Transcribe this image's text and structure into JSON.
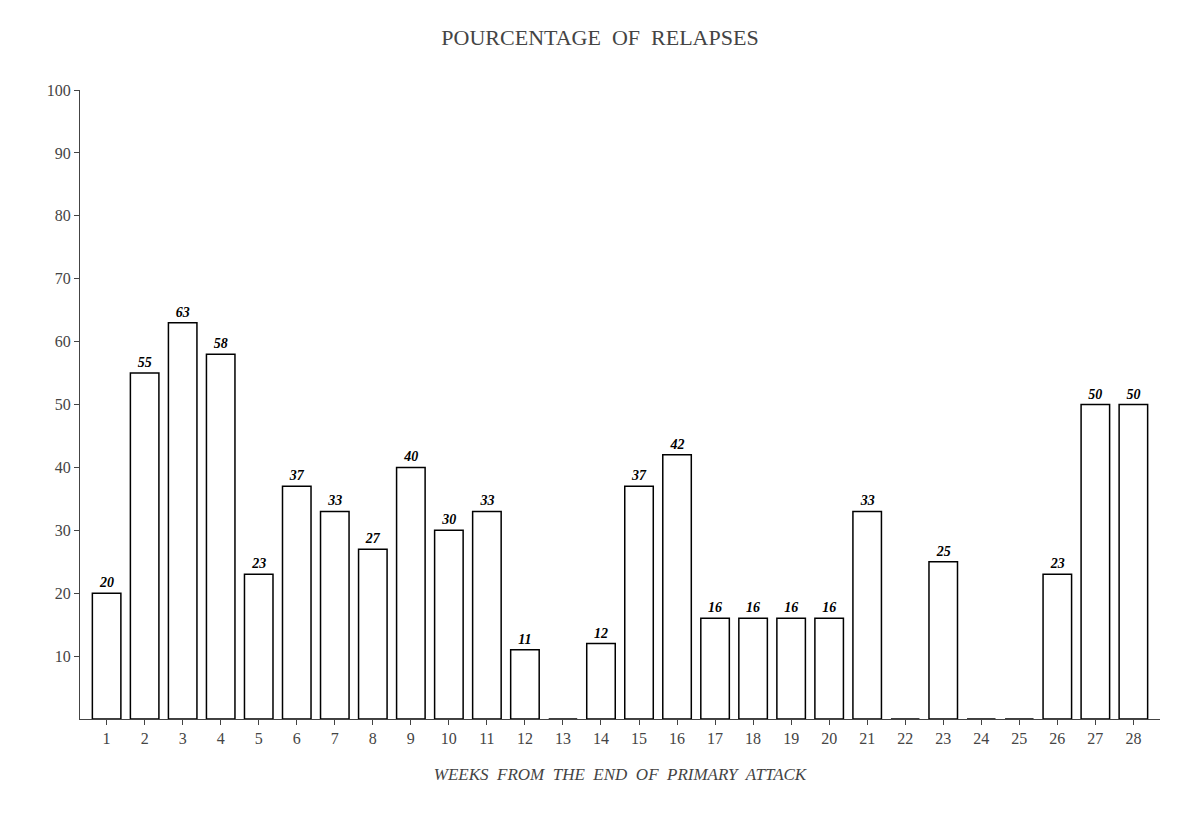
{
  "chart_data": {
    "type": "bar",
    "title": "POURCENTAGE  OF  RELAPSES",
    "xlabel": "WEEKS  FROM  THE  END  OF  PRIMARY  ATTACK",
    "x": [
      1,
      2,
      3,
      4,
      5,
      6,
      7,
      8,
      9,
      10,
      11,
      12,
      13,
      14,
      15,
      16,
      17,
      18,
      19,
      20,
      21,
      22,
      23,
      24,
      25,
      26,
      27,
      28
    ],
    "values": [
      20,
      55,
      63,
      58,
      23,
      37,
      33,
      27,
      40,
      30,
      33,
      11,
      0,
      12,
      37,
      42,
      16,
      16,
      16,
      16,
      33,
      0,
      25,
      0,
      0,
      23,
      50,
      50
    ],
    "value_labels": [
      "20",
      "55",
      "63",
      "58",
      "23",
      "37",
      "33",
      "27",
      "40",
      "30",
      "33",
      "11",
      null,
      "12",
      "37",
      "42",
      "16",
      "16",
      "16",
      "16",
      "33",
      null,
      "25",
      null,
      null,
      "23",
      "50",
      "50"
    ],
    "data_labels": true,
    "color": "#ffffff",
    "xlim": [
      0.3,
      28.7
    ],
    "xticks": [
      1,
      2,
      3,
      4,
      5,
      6,
      7,
      8,
      9,
      10,
      11,
      12,
      13,
      14,
      15,
      16,
      17,
      18,
      19,
      20,
      21,
      22,
      23,
      24,
      25,
      26,
      27,
      28
    ],
    "ylim": [
      0,
      100
    ],
    "yticks": [
      10,
      20,
      30,
      40,
      50,
      60,
      70,
      80,
      90,
      100
    ],
    "grid": false
  }
}
